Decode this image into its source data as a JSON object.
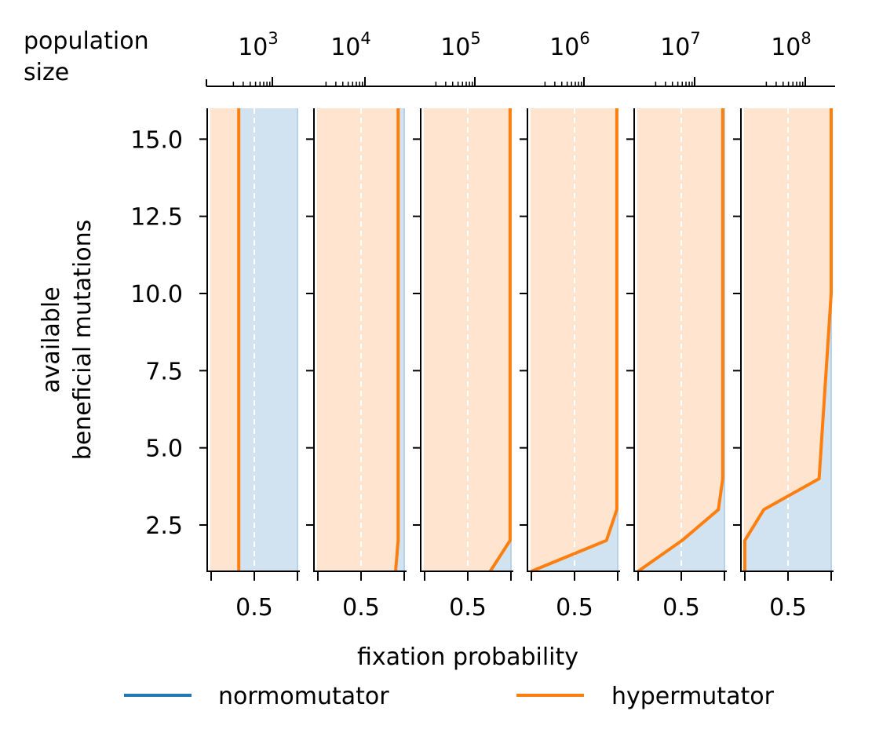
{
  "figure": {
    "top_label": "population\nsize",
    "xlabel": "fixation probability",
    "ylabel": "available\nbeneficial mutations"
  },
  "colors": {
    "normomutator": "#1f77b4",
    "hypermutator": "#ff7f0e",
    "normomutator_fill": "#d1e3f0",
    "hypermutator_fill": "#ffe5cf",
    "grid": "#ffffff"
  },
  "chart_data": {
    "type": "area",
    "layout": "small multiples, one panel per population size",
    "xlabel": "fixation probability",
    "ylabel": "available\nbeneficial mutations",
    "xlim": [
      0,
      1
    ],
    "x_ticks": [
      0,
      0.5,
      1
    ],
    "x_tick_labels": [
      "",
      "0.5",
      ""
    ],
    "ylim": [
      1,
      16
    ],
    "y_ticks": [
      2.5,
      5.0,
      7.5,
      10.0,
      12.5,
      15.0
    ],
    "y_tick_labels": [
      "2.5",
      "5.0",
      "7.5",
      "10.0",
      "12.5",
      "15.0"
    ],
    "grid": "vertical dashed white line at 0.5",
    "top_axis": {
      "label": "population\nsize",
      "scale": "log",
      "tick_labels": [
        {
          "base": "10",
          "exp": "3"
        },
        {
          "base": "10",
          "exp": "4"
        },
        {
          "base": "10",
          "exp": "5"
        },
        {
          "base": "10",
          "exp": "6"
        },
        {
          "base": "10",
          "exp": "7"
        },
        {
          "base": "10",
          "exp": "8"
        }
      ]
    },
    "legend": {
      "placement": "bottom-center",
      "entries": [
        {
          "label": "normomutator",
          "color": "#1f77b4"
        },
        {
          "label": "hypermutator",
          "color": "#ff7f0e"
        }
      ]
    },
    "panels": [
      {
        "population_size": 1000,
        "hypermutator": [
          {
            "y": 1,
            "x": 0.32
          },
          {
            "y": 16,
            "x": 0.32
          }
        ]
      },
      {
        "population_size": 10000,
        "hypermutator": [
          {
            "y": 1,
            "x": 0.9
          },
          {
            "y": 2,
            "x": 0.93
          },
          {
            "y": 16,
            "x": 0.93
          }
        ]
      },
      {
        "population_size": 100000,
        "hypermutator": [
          {
            "y": 1,
            "x": 0.76
          },
          {
            "y": 2,
            "x": 0.99
          },
          {
            "y": 16,
            "x": 0.99
          }
        ]
      },
      {
        "population_size": 1000000,
        "hypermutator": [
          {
            "y": 1,
            "x": 0.0
          },
          {
            "y": 2,
            "x": 0.87
          },
          {
            "y": 3,
            "x": 0.99
          },
          {
            "y": 16,
            "x": 0.99
          }
        ]
      },
      {
        "population_size": 10000000,
        "hypermutator": [
          {
            "y": 1,
            "x": 0.0
          },
          {
            "y": 2,
            "x": 0.51
          },
          {
            "y": 3,
            "x": 0.93
          },
          {
            "y": 4,
            "x": 0.98
          },
          {
            "y": 16,
            "x": 0.98
          }
        ]
      },
      {
        "population_size": 100000000,
        "hypermutator": [
          {
            "y": 1,
            "x": 0.0
          },
          {
            "y": 2,
            "x": 0.0
          },
          {
            "y": 3,
            "x": 0.22
          },
          {
            "y": 4,
            "x": 0.86
          },
          {
            "y": 10,
            "x": 1.0
          },
          {
            "y": 16,
            "x": 1.0
          }
        ]
      }
    ]
  }
}
